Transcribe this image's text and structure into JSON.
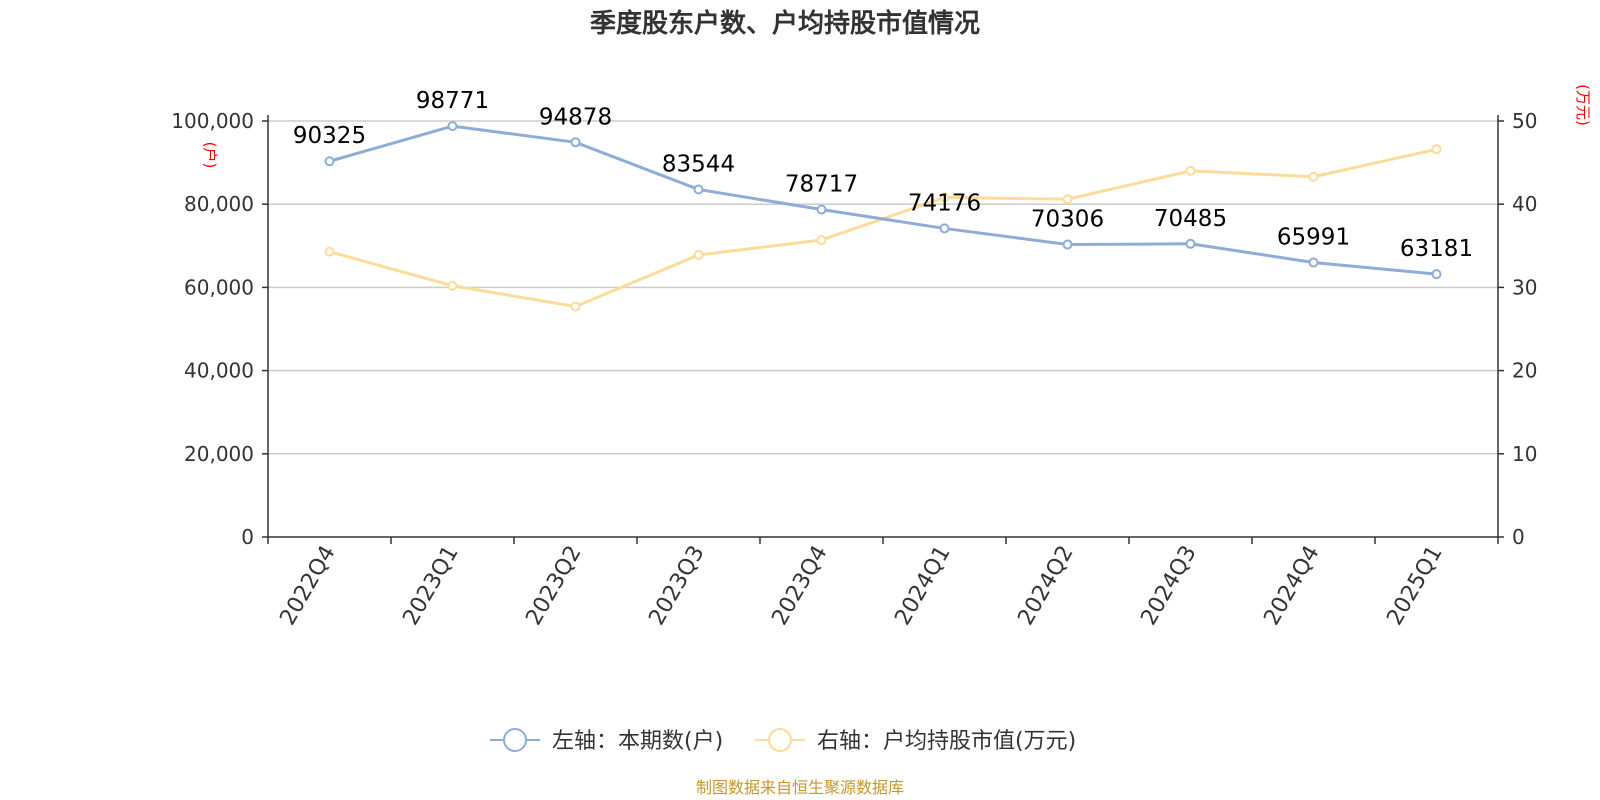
{
  "colors": {
    "series1": "#8eacd8",
    "series2": "#fddb99",
    "grid": "#cccccc",
    "axis": "#333333",
    "unit": "#ff0000",
    "source": "#c8962b"
  },
  "chart_data": {
    "type": "line",
    "title": "季度股东户数、户均持股市值情况",
    "categories": [
      "2022Q4",
      "2023Q1",
      "2023Q2",
      "2023Q3",
      "2023Q4",
      "2024Q1",
      "2024Q2",
      "2024Q3",
      "2024Q4",
      "2025Q1"
    ],
    "y_left": {
      "unit": "(户)",
      "ylim": [
        0,
        100000
      ],
      "ticks": [
        "0",
        "20,000",
        "40,000",
        "60,000",
        "80,000",
        "100,000"
      ],
      "tick_values": [
        0,
        20000,
        40000,
        60000,
        80000,
        100000
      ]
    },
    "y_right": {
      "unit": "(万元)",
      "ylim": [
        0,
        50
      ],
      "ticks": [
        "0",
        "10",
        "20",
        "30",
        "40",
        "50"
      ],
      "tick_values": [
        0,
        10,
        20,
        30,
        40,
        50
      ]
    },
    "series": [
      {
        "name": "左轴：本期数(户)",
        "axis": "left",
        "values": [
          90325,
          98771,
          94878,
          83544,
          78717,
          74176,
          70306,
          70485,
          65991,
          63181
        ],
        "labels": [
          "90325",
          "98771",
          "94878",
          "83544",
          "78717",
          "74176",
          "70306",
          "70485",
          "65991",
          "63181"
        ]
      },
      {
        "name": "右轴：户均持股市值(万元)",
        "axis": "right",
        "values": [
          34.3,
          30.2,
          27.7,
          33.9,
          35.7,
          40.8,
          40.6,
          44.0,
          43.3,
          46.6
        ]
      }
    ],
    "grid": true,
    "legend_position": "bottom"
  },
  "source_text": "制图数据来自恒生聚源数据库"
}
